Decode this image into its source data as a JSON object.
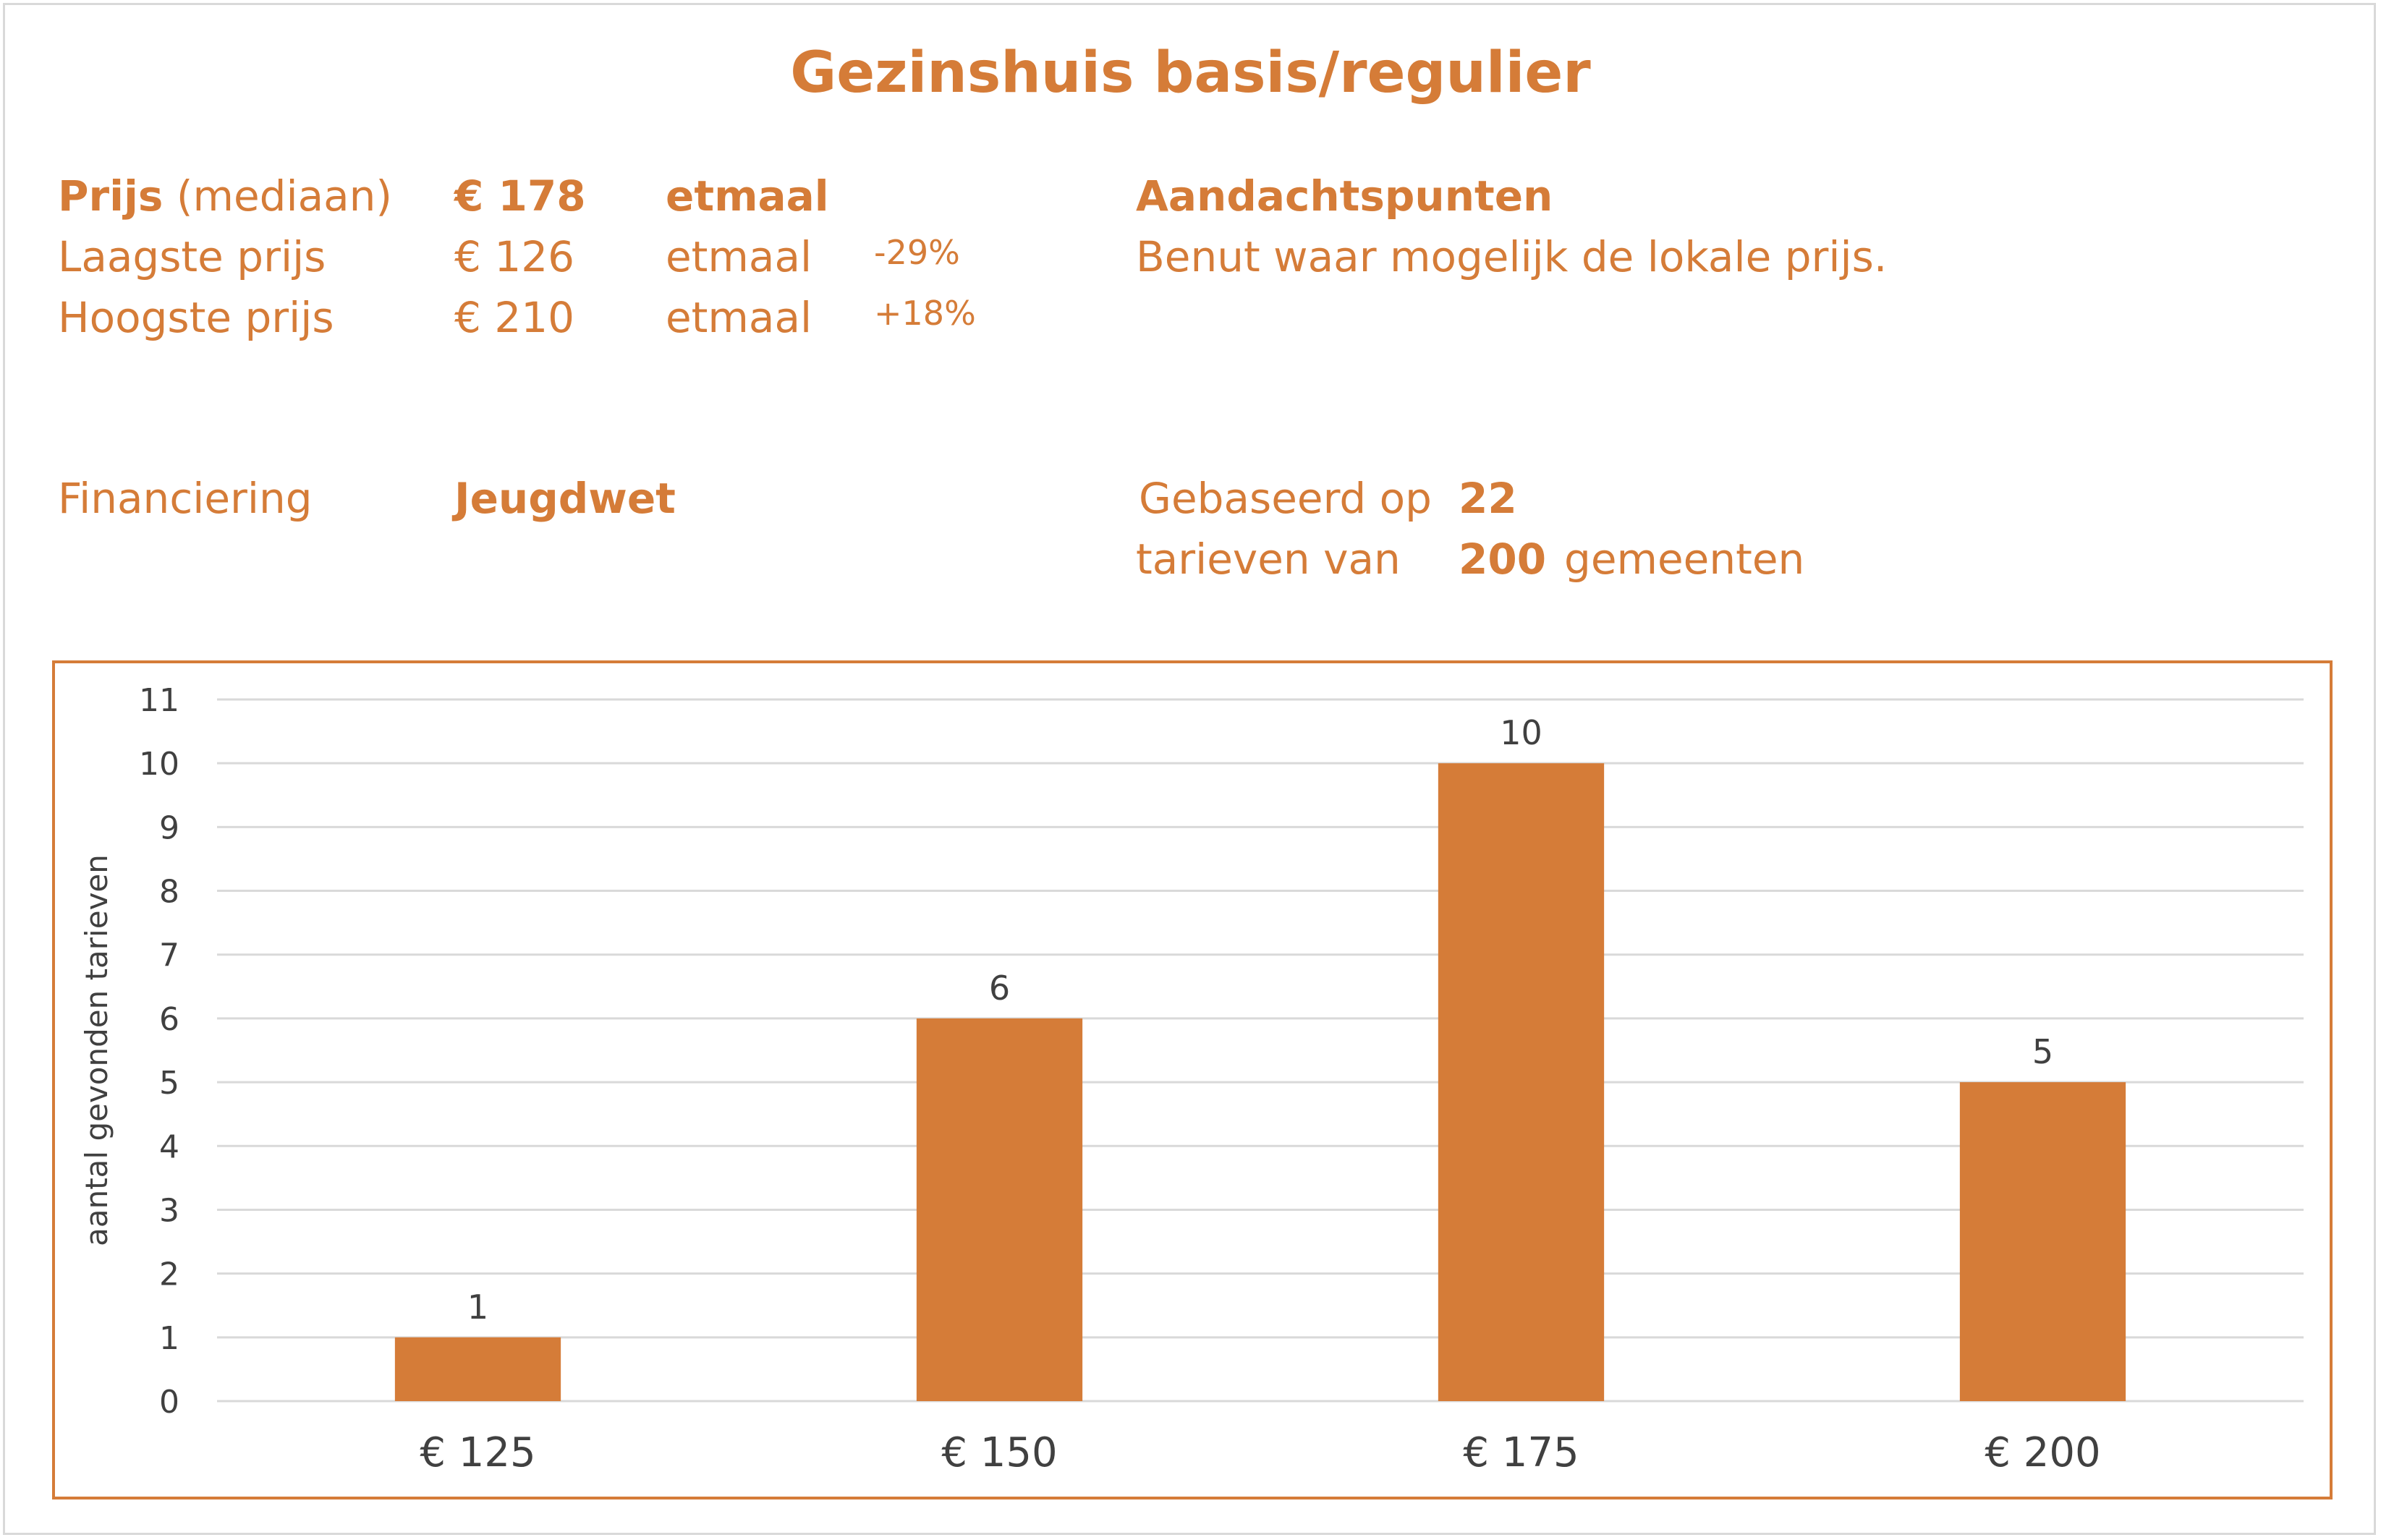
{
  "title": "Gezinshuis basis/regulier",
  "prices": {
    "median": {
      "label_bold": "Prijs",
      "label_rest": "(mediaan)",
      "value": "€ 178",
      "unit": "etmaal"
    },
    "lowest": {
      "label": "Laagste prijs",
      "value": "€ 126",
      "unit": "etmaal",
      "delta": "-29%"
    },
    "highest": {
      "label": "Hoogste prijs",
      "value": "€ 210",
      "unit": "etmaal",
      "delta": "+18%"
    }
  },
  "attention": {
    "heading": "Aandachtspunten",
    "text": "Benut waar mogelijk de lokale prijs."
  },
  "financing": {
    "label": "Financiering",
    "value": "Jeugdwet"
  },
  "basis": {
    "line1": "Gebaseerd op",
    "count_tariffs": "22",
    "line2": "tarieven van",
    "count_municipalities": "200",
    "line2_suffix": "gemeenten"
  },
  "colors": {
    "accent": "#D57C38",
    "grid": "#d9d9d9",
    "text_dark": "#404040"
  },
  "chart_data": {
    "type": "bar",
    "categories": [
      "€ 125",
      "€ 150",
      "€ 175",
      "€ 200"
    ],
    "values": [
      1,
      6,
      10,
      5
    ],
    "data_labels": [
      "1",
      "6",
      "10",
      "5"
    ],
    "ylabel": "aantal gevonden tarieven",
    "ylim": [
      0,
      11
    ],
    "yticks": [
      "0",
      "1",
      "2",
      "3",
      "4",
      "5",
      "6",
      "7",
      "8",
      "9",
      "10",
      "11"
    ],
    "grid": true,
    "legend": "none"
  }
}
